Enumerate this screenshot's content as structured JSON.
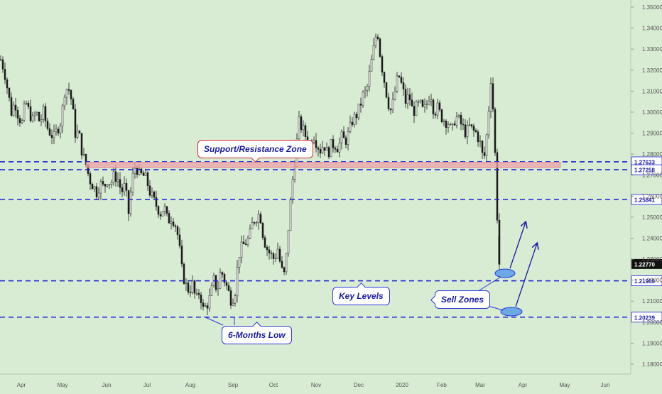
{
  "chart_data": {
    "type": "candlestick",
    "y_ticks": [
      "1.35000",
      "1.34000",
      "1.33000",
      "1.32000",
      "1.31000",
      "1.30000",
      "1.29000",
      "1.28000",
      "1.27000",
      "1.26000",
      "1.25000",
      "1.24000",
      "1.23000",
      "1.22000",
      "1.21000",
      "1.20000",
      "1.19000",
      "1.18000"
    ],
    "ylim": [
      1.1705,
      1.3518
    ],
    "x_ticks": [
      "Apr",
      "May",
      "Jun",
      "Jul",
      "Aug",
      "Sep",
      "Oct",
      "Nov",
      "Dec",
      "2020",
      "Feb",
      "Mar",
      "Apr",
      "May",
      "Jun"
    ],
    "levels": [
      {
        "price": 1.27633,
        "label": "1.27633"
      },
      {
        "price": 1.27258,
        "label": "1.27258"
      },
      {
        "price": 1.25841,
        "label": "1.25841"
      },
      {
        "price": 1.21969,
        "label": "1.21969"
      },
      {
        "price": 1.20239,
        "label": "1.20239"
      }
    ],
    "current_price": {
      "price": 1.2277,
      "label": "1.22770"
    },
    "zone": {
      "top": 1.2762,
      "bottom": 1.2735
    },
    "annotations": {
      "zone_label": "Support/Resistance Zone",
      "key_levels": "Key Levels",
      "low_label": "6-Months Low",
      "sell_label": "Sell Zones"
    },
    "price_path": [
      [
        0,
        1.325
      ],
      [
        5,
        1.32
      ],
      [
        10,
        1.31
      ],
      [
        15,
        1.3
      ],
      [
        20,
        1.305
      ],
      [
        25,
        1.298
      ],
      [
        30,
        1.295
      ],
      [
        35,
        1.305
      ],
      [
        40,
        1.3
      ],
      [
        45,
        1.296
      ],
      [
        50,
        1.3
      ],
      [
        55,
        1.295
      ],
      [
        60,
        1.3
      ],
      [
        65,
        1.293
      ],
      [
        70,
        1.29
      ],
      [
        75,
        1.288
      ],
      [
        80,
        1.292
      ],
      [
        85,
        1.296
      ],
      [
        90,
        1.31
      ],
      [
        95,
        1.312
      ],
      [
        100,
        1.305
      ],
      [
        105,
        1.29
      ],
      [
        110,
        1.29
      ],
      [
        115,
        1.28
      ],
      [
        120,
        1.275
      ],
      [
        125,
        1.268
      ],
      [
        130,
        1.265
      ],
      [
        135,
        1.262
      ],
      [
        140,
        1.266
      ],
      [
        145,
        1.264
      ],
      [
        150,
        1.268
      ],
      [
        155,
        1.266
      ],
      [
        160,
        1.27
      ],
      [
        165,
        1.268
      ],
      [
        170,
        1.262
      ],
      [
        175,
        1.265
      ],
      [
        180,
        1.252
      ],
      [
        185,
        1.268
      ],
      [
        190,
        1.275
      ],
      [
        195,
        1.27
      ],
      [
        200,
        1.27
      ],
      [
        205,
        1.268
      ],
      [
        210,
        1.262
      ],
      [
        215,
        1.258
      ],
      [
        220,
        1.255
      ],
      [
        225,
        1.252
      ],
      [
        230,
        1.255
      ],
      [
        235,
        1.248
      ],
      [
        240,
        1.25
      ],
      [
        245,
        1.248
      ],
      [
        250,
        1.24
      ],
      [
        255,
        1.225
      ],
      [
        260,
        1.218
      ],
      [
        265,
        1.215
      ],
      [
        270,
        1.218
      ],
      [
        275,
        1.21
      ],
      [
        280,
        1.215
      ],
      [
        285,
        1.206
      ],
      [
        290,
        1.208
      ],
      [
        295,
        1.212
      ],
      [
        300,
        1.22
      ],
      [
        305,
        1.215
      ],
      [
        310,
        1.225
      ],
      [
        315,
        1.22
      ],
      [
        320,
        1.215
      ],
      [
        325,
        1.21
      ],
      [
        330,
        1.215
      ],
      [
        335,
        1.232
      ],
      [
        340,
        1.236
      ],
      [
        345,
        1.238
      ],
      [
        350,
        1.24
      ],
      [
        355,
        1.248
      ],
      [
        360,
        1.25
      ],
      [
        365,
        1.252
      ],
      [
        370,
        1.24
      ],
      [
        375,
        1.235
      ],
      [
        380,
        1.232
      ],
      [
        385,
        1.23
      ],
      [
        390,
        1.235
      ],
      [
        395,
        1.225
      ],
      [
        400,
        1.222
      ],
      [
        405,
        1.245
      ],
      [
        410,
        1.265
      ],
      [
        415,
        1.28
      ],
      [
        420,
        1.295
      ],
      [
        425,
        1.292
      ],
      [
        430,
        1.288
      ],
      [
        435,
        1.285
      ],
      [
        440,
        1.29
      ],
      [
        445,
        1.285
      ],
      [
        450,
        1.282
      ],
      [
        455,
        1.285
      ],
      [
        460,
        1.28
      ],
      [
        465,
        1.284
      ],
      [
        470,
        1.285
      ],
      [
        475,
        1.283
      ],
      [
        480,
        1.288
      ],
      [
        485,
        1.286
      ],
      [
        490,
        1.29
      ],
      [
        495,
        1.296
      ],
      [
        500,
        1.298
      ],
      [
        505,
        1.302
      ],
      [
        510,
        1.308
      ],
      [
        515,
        1.31
      ],
      [
        520,
        1.32
      ],
      [
        525,
        1.33
      ],
      [
        530,
        1.34
      ],
      [
        535,
        1.325
      ],
      [
        540,
        1.315
      ],
      [
        545,
        1.305
      ],
      [
        550,
        1.3
      ],
      [
        555,
        1.31
      ],
      [
        560,
        1.318
      ],
      [
        565,
        1.312
      ],
      [
        570,
        1.305
      ],
      [
        575,
        1.308
      ],
      [
        580,
        1.3
      ],
      [
        585,
        1.302
      ],
      [
        590,
        1.304
      ],
      [
        595,
        1.3
      ],
      [
        600,
        1.304
      ],
      [
        605,
        1.31
      ],
      [
        610,
        1.3
      ],
      [
        615,
        1.302
      ],
      [
        620,
        1.298
      ],
      [
        625,
        1.296
      ],
      [
        630,
        1.295
      ],
      [
        635,
        1.29
      ],
      [
        640,
        1.298
      ],
      [
        645,
        1.296
      ],
      [
        650,
        1.293
      ],
      [
        655,
        1.29
      ],
      [
        660,
        1.293
      ],
      [
        665,
        1.291
      ],
      [
        670,
        1.29
      ],
      [
        675,
        1.285
      ],
      [
        680,
        1.276
      ],
      [
        685,
        1.292
      ],
      [
        690,
        1.316
      ],
      [
        693,
        1.302
      ],
      [
        696,
        1.28
      ],
      [
        698,
        1.26
      ],
      [
        700,
        1.241
      ],
      [
        702,
        1.2277
      ]
    ],
    "candle_spread": 0.006
  }
}
